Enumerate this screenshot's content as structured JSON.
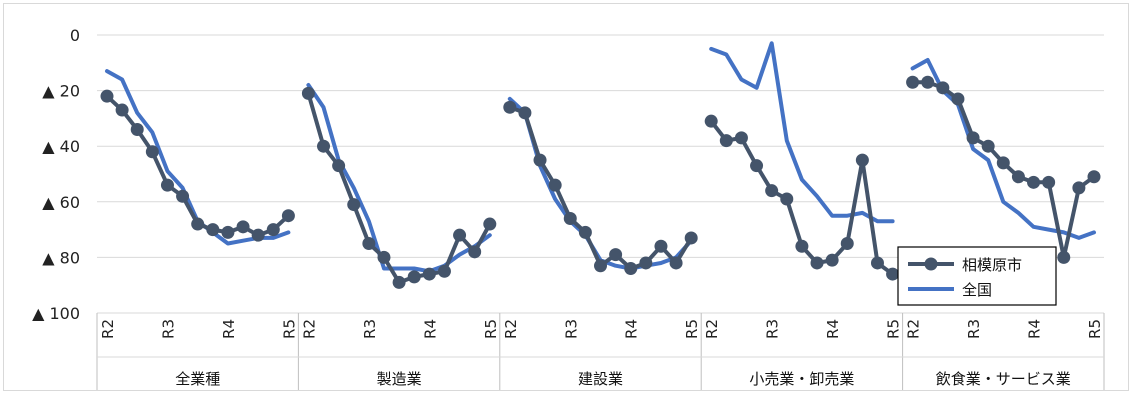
{
  "chart_data": {
    "type": "line",
    "y_tick_labels": [
      "0",
      "▲ 20",
      "▲ 40",
      "▲ 60",
      "▲ 80",
      "▲ 100"
    ],
    "y_tick_values": [
      0,
      -20,
      -40,
      -60,
      -80,
      -100
    ],
    "ylim": [
      -100,
      0
    ],
    "groups": [
      {
        "label": "全業種",
        "ticks": [
          "R2",
          "R3",
          "R4",
          "R5"
        ],
        "series": {
          "sagamihara": [
            -22,
            -27,
            -34,
            -42,
            -54,
            -58,
            -68,
            -70,
            -71,
            -69,
            -72,
            -70,
            -65
          ],
          "national": [
            -13,
            -16,
            -28,
            -35,
            -49,
            -55,
            -67,
            -71,
            -75,
            -74,
            -73,
            -73,
            -71
          ]
        }
      },
      {
        "label": "製造業",
        "ticks": [
          "R2",
          "R3",
          "R4",
          "R5"
        ],
        "series": {
          "sagamihara": [
            -21,
            -40,
            -47,
            -61,
            -75,
            -80,
            -89,
            -87,
            -86,
            -85,
            -72,
            -78,
            -68
          ],
          "national": [
            -18,
            -26,
            -45,
            -55,
            -67,
            -84,
            -84,
            -84,
            -85,
            -83,
            -79,
            -76,
            -72
          ]
        }
      },
      {
        "label": "建設業",
        "ticks": [
          "R2",
          "R3",
          "R4",
          "R5"
        ],
        "series": {
          "sagamihara": [
            -26,
            -28,
            -45,
            -54,
            -66,
            -71,
            -83,
            -79,
            -84,
            -82,
            -76,
            -82,
            -73
          ],
          "national": [
            -23,
            -28,
            -47,
            -59,
            -67,
            -72,
            -81,
            -83,
            -84,
            -83,
            -82,
            -80,
            -74
          ]
        }
      },
      {
        "label": "小売業・卸売業",
        "ticks": [
          "R2",
          "R3",
          "R4",
          "R5"
        ],
        "series": {
          "sagamihara": [
            -31,
            -38,
            -37,
            -47,
            -56,
            -59,
            -76,
            -82,
            -81,
            -75,
            -45,
            -82,
            -86
          ],
          "national": [
            -5,
            -7,
            -16,
            -19,
            -3,
            -38,
            -52,
            -58,
            -65,
            -65,
            -64,
            -67,
            -67
          ]
        }
      },
      {
        "label": "飲食業・サービス業",
        "ticks": [
          "R2",
          "R3",
          "R4",
          "R5"
        ],
        "series": {
          "sagamihara": [
            -17,
            -17,
            -19,
            -23,
            -37,
            -40,
            -46,
            -51,
            -53,
            -53,
            -80,
            -55,
            -51
          ],
          "national": [
            -12,
            -9,
            -20,
            -25,
            -41,
            -45,
            -60,
            -64,
            -69,
            -70,
            -71,
            -73,
            -71
          ]
        }
      }
    ],
    "series_meta": [
      {
        "key": "sagamihara",
        "name": "相模原市",
        "color": "#44546A",
        "marker": true
      },
      {
        "key": "national",
        "name": "全国",
        "color": "#4472C4",
        "marker": false
      }
    ],
    "legend": {
      "position": "bottom-right"
    }
  }
}
